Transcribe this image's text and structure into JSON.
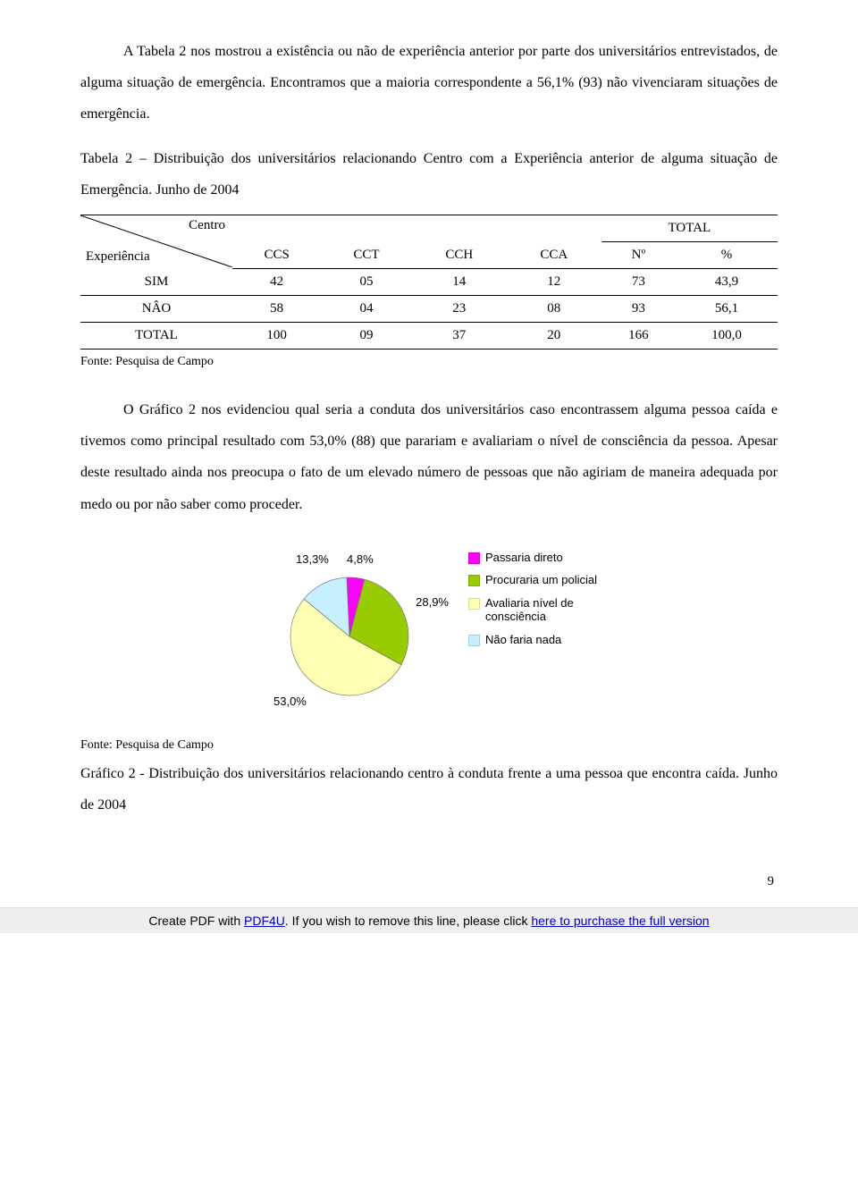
{
  "paragraphs": {
    "p1": "A Tabela 2 nos mostrou a existência ou não de experiência anterior por parte dos universitários entrevistados, de alguma situação de emergência. Encontramos que a maioria correspondente a 56,1% (93) não vivenciaram situações de emergência.",
    "table2_caption": "Tabela 2 – Distribuição dos universitários relacionando Centro com a Experiência anterior de alguma situação de Emergência. Junho de 2004",
    "p2": "O Gráfico 2 nos evidenciou qual seria a conduta dos universitários caso encontrassem alguma pessoa caída e tivemos como principal resultado com 53,0% (88) que parariam e avaliariam o nível de consciência da pessoa. Apesar deste resultado ainda nos preocupa o fato de um elevado número de pessoas que não agiriam de maneira adequada por medo ou por não saber como proceder.",
    "chart2_caption": "Gráfico 2 - Distribuição dos universitários relacionando centro à conduta frente a uma pessoa que encontra caída. Junho de 2004"
  },
  "table2": {
    "corner_top": "Centro",
    "corner_bottom": "Experiência",
    "columns": [
      "CCS",
      "CCT",
      "CCH",
      "CCA",
      "Nº",
      "%"
    ],
    "total_header": "TOTAL",
    "rows": [
      {
        "label": "SIM",
        "cells": [
          "42",
          "05",
          "14",
          "12",
          "73",
          "43,9"
        ]
      },
      {
        "label": "NÂO",
        "cells": [
          "58",
          "04",
          "23",
          "08",
          "93",
          "56,1"
        ]
      },
      {
        "label": "TOTAL",
        "cells": [
          "100",
          "09",
          "37",
          "20",
          "166",
          "100,0"
        ]
      }
    ]
  },
  "source_label": "Fonte: Pesquisa de Campo",
  "chart2": {
    "type": "pie",
    "background_color": "#ffffff",
    "label_fontsize": 13,
    "slices": [
      {
        "legend": "Passaria direto",
        "pct": 4.8,
        "pct_label": "4,8%",
        "color": "#ff00ff"
      },
      {
        "legend": "Procuraria um policial",
        "pct": 28.9,
        "pct_label": "28,9%",
        "color": "#99cc00"
      },
      {
        "legend": "Avaliaria nível de consciência",
        "pct": 53.0,
        "pct_label": "53,0%",
        "color": "#ffffb3"
      },
      {
        "legend": "Não faria nada",
        "pct": 13.3,
        "pct_label": "13,3%",
        "color": "#c6f0ff"
      }
    ],
    "slice_outline": "#666666"
  },
  "page_number": "9",
  "footer": {
    "prefix": "Create PDF with ",
    "link1": "PDF4U",
    "middle": ". If you wish to remove this line, please click ",
    "link2": "here to purchase the full version"
  }
}
